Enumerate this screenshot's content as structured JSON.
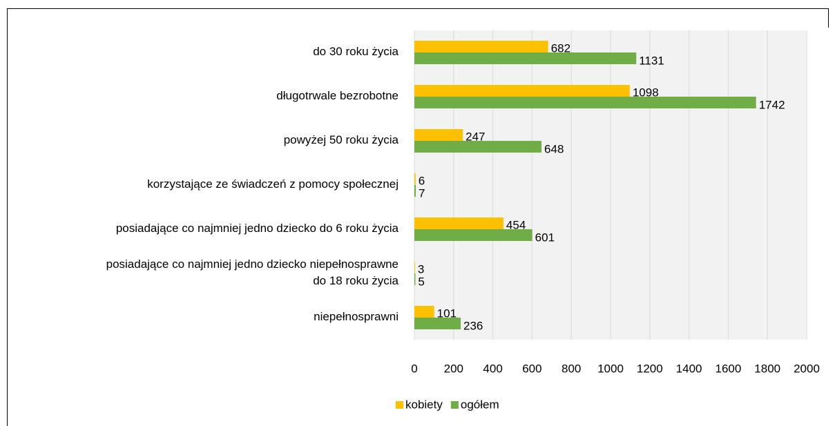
{
  "chart_data": {
    "type": "bar",
    "orientation": "horizontal",
    "categories": [
      "do 30 roku życia",
      "długotrwale bezrobotne",
      "powyżej 50 roku życia",
      "korzystające ze świadczeń z pomocy społecznej",
      "posiadające co najmniej jedno dziecko do 6 roku życia",
      "posiadające co najmniej jedno dziecko niepełnosprawne\ndo 18 roku życia",
      "niepełnosprawni"
    ],
    "series": [
      {
        "name": "kobiety",
        "color": "#ffc000",
        "values": [
          682,
          1098,
          247,
          6,
          454,
          3,
          101
        ]
      },
      {
        "name": "ogółem",
        "color": "#70ad47",
        "values": [
          1131,
          1742,
          648,
          7,
          601,
          5,
          236
        ]
      }
    ],
    "xlim": [
      0,
      2000
    ],
    "xticks": [
      0,
      200,
      400,
      600,
      800,
      1000,
      1200,
      1400,
      1600,
      1800,
      2000
    ],
    "grid": true,
    "legend": "bottom"
  }
}
